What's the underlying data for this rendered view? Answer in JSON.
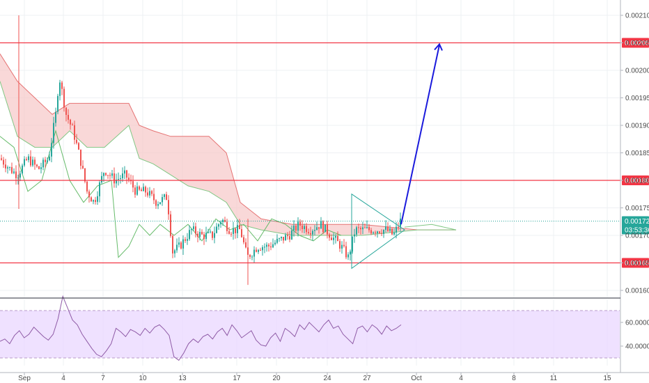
{
  "colors": {
    "background": "#ffffff",
    "grid": "#eef0f3",
    "up_candle": "#26a69a",
    "down_candle": "#ef5350",
    "level_line": "#f23645",
    "price_line": "#26a69a",
    "arrow": "#1a1adc",
    "triangle": "#26a69a",
    "cloud_bear": "#f7c8c8",
    "cloud_bull": "#c8e6c9",
    "rsi_band": "#ead7ff",
    "rsi_line": "#8e5aa6",
    "axis_text": "#4a4a4a"
  },
  "chart_data": [
    {
      "type": "candlestick",
      "title": "",
      "x_tick_labels": [
        "Sep",
        "4",
        "7",
        "10",
        "13",
        "17",
        "20",
        "24",
        "27",
        "Oct",
        "4",
        "8",
        "11",
        "15"
      ],
      "y_tick_labels": [
        "0.002100",
        "0.00205",
        "0.002000",
        "0.001950",
        "0.001900",
        "0.001850",
        "0.00180",
        "0.001750",
        "0.001700",
        "0.00165",
        "0.001600"
      ],
      "ylim": [
        0.00158,
        0.00212
      ],
      "grid": true,
      "horizontal_levels": [
        {
          "label": "0.002050",
          "value": 0.00205
        },
        {
          "label": "0.001800",
          "value": 0.0018
        },
        {
          "label": "0.001650",
          "value": 0.00165
        }
      ],
      "current_price": {
        "label": "0.001726",
        "value": 0.001726,
        "countdown": "03:53:36"
      },
      "candles_summary": {
        "first_close": 0.00183,
        "peak_high": 0.002,
        "low": 0.00161,
        "last_close": 0.001726
      },
      "triangle_pattern": {
        "apex_price": 0.00171,
        "top_price": 0.001775,
        "bottom_price": 0.00164
      },
      "projected_target": 0.00205
    },
    {
      "type": "line",
      "title": "",
      "y_tick_labels": [
        "60.0000",
        "40.0000"
      ],
      "ylim": [
        25,
        90
      ],
      "overbought": 70,
      "oversold": 30,
      "series": [
        {
          "values": [
            44,
            46,
            42,
            49,
            53,
            47,
            50,
            56,
            52,
            48,
            45,
            50,
            63,
            82,
            72,
            62,
            58,
            50,
            44,
            38,
            33,
            31,
            36,
            42,
            55,
            52,
            48,
            54,
            52,
            49,
            55,
            51,
            56,
            58,
            54,
            49,
            31,
            28,
            34,
            42,
            46,
            43,
            48,
            50,
            46,
            52,
            55,
            49,
            58,
            53,
            47,
            50,
            53,
            45,
            41,
            40,
            47,
            51,
            44,
            55,
            52,
            48,
            58,
            54,
            60,
            56,
            52,
            58,
            62,
            55,
            57,
            50,
            46,
            42,
            55,
            57,
            52,
            58,
            55,
            50,
            57,
            53,
            55,
            58
          ]
        }
      ]
    }
  ]
}
